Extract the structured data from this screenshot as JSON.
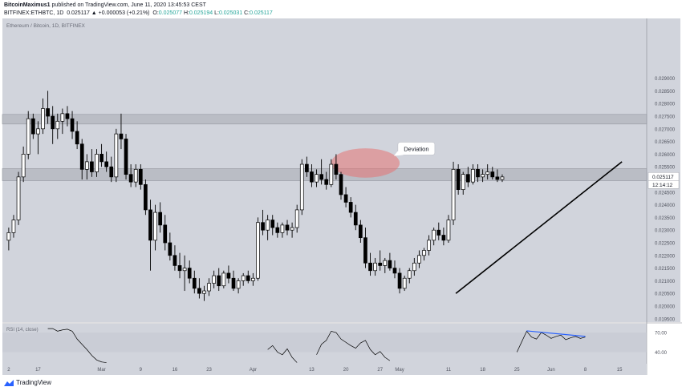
{
  "header": {
    "author": "BitcoinMaximus1",
    "published_text": "published on TradingView.com, June 11, 2020 13:45:53 CEST",
    "symbol": "BITFINEX:ETHBTC, 1D",
    "change": "0.025117 ▲ +0.000053 (+0.21%)",
    "o_label": "O:",
    "o_value": "0.025077",
    "h_label": "H:",
    "h_value": "0.025194",
    "l_label": "L:",
    "l_value": "0.025031",
    "c_label": "C:",
    "c_value": "0.025117"
  },
  "footer": {
    "brand": "TradingView",
    "icon": "tradingview-logo-icon"
  },
  "colors": {
    "background": "#d1d4dc",
    "candle_up": "#ffffff",
    "candle_down": "#000000",
    "zone": "#b2b5be",
    "deviation_ellipse": "#e57373",
    "trendline": "#000000",
    "rsi_line": "#000000",
    "divergence": "#2962ff",
    "price_tag": "#ffffff"
  },
  "chart_data": {
    "type": "candlestick",
    "title": "Ethereum / Bitcoin, 1D, BITFINEX",
    "y_ticks": [
      "0.029000",
      "0.028500",
      "0.028000",
      "0.027500",
      "0.027000",
      "0.026500",
      "0.026000",
      "0.025500",
      "0.025000",
      "0.024500",
      "0.024000",
      "0.023500",
      "0.023000",
      "0.022500",
      "0.022000",
      "0.021500",
      "0.021000",
      "0.020500",
      "0.020000",
      "0.019500"
    ],
    "ylim": [
      0.0194,
      0.0295
    ],
    "x_ticks": [
      {
        "label": "2",
        "day": 0
      },
      {
        "label": "17",
        "day": 6
      },
      {
        "label": "Mar",
        "day": 19
      },
      {
        "label": "9",
        "day": 27
      },
      {
        "label": "16",
        "day": 34
      },
      {
        "label": "23",
        "day": 41
      },
      {
        "label": "Apr",
        "day": 50
      },
      {
        "label": "13",
        "day": 62
      },
      {
        "label": "20",
        "day": 69
      },
      {
        "label": "27",
        "day": 76
      },
      {
        "label": "May",
        "day": 80
      },
      {
        "label": "11",
        "day": 90
      },
      {
        "label": "18",
        "day": 97
      },
      {
        "label": "25",
        "day": 104
      },
      {
        "label": "Jun",
        "day": 111
      },
      {
        "label": "8",
        "day": 118
      },
      {
        "label": "15",
        "day": 125
      },
      {
        "label": "22",
        "day": 132
      }
    ],
    "last_price": "0.025117",
    "countdown": "12:14:12",
    "candles": [
      [
        0.0226,
        0.0231,
        0.0222,
        0.0229
      ],
      [
        0.0229,
        0.0236,
        0.0227,
        0.0234
      ],
      [
        0.0234,
        0.0253,
        0.0232,
        0.0251
      ],
      [
        0.0251,
        0.0263,
        0.0249,
        0.026
      ],
      [
        0.026,
        0.0277,
        0.0258,
        0.0274
      ],
      [
        0.0274,
        0.0276,
        0.0266,
        0.0268
      ],
      [
        0.0268,
        0.0273,
        0.026,
        0.027
      ],
      [
        0.027,
        0.0282,
        0.0268,
        0.0278
      ],
      [
        0.0278,
        0.0285,
        0.0272,
        0.0275
      ],
      [
        0.0275,
        0.0279,
        0.0264,
        0.027
      ],
      [
        0.027,
        0.0276,
        0.0266,
        0.0273
      ],
      [
        0.0273,
        0.0278,
        0.0268,
        0.0276
      ],
      [
        0.0276,
        0.0279,
        0.0271,
        0.0274
      ],
      [
        0.0274,
        0.0277,
        0.0266,
        0.0269
      ],
      [
        0.0269,
        0.0273,
        0.0262,
        0.0264
      ],
      [
        0.0264,
        0.0266,
        0.025,
        0.0254
      ],
      [
        0.0254,
        0.026,
        0.025,
        0.0257
      ],
      [
        0.0257,
        0.0262,
        0.0251,
        0.0253
      ],
      [
        0.0253,
        0.0262,
        0.0251,
        0.026
      ],
      [
        0.026,
        0.0264,
        0.0255,
        0.0257
      ],
      [
        0.0257,
        0.0261,
        0.0253,
        0.0255
      ],
      [
        0.0255,
        0.0259,
        0.0249,
        0.0251
      ],
      [
        0.0251,
        0.027,
        0.0249,
        0.0268
      ],
      [
        0.0268,
        0.0276,
        0.0262,
        0.0266
      ],
      [
        0.0266,
        0.0268,
        0.025,
        0.0252
      ],
      [
        0.0252,
        0.0256,
        0.0247,
        0.0249
      ],
      [
        0.0249,
        0.0256,
        0.0247,
        0.0254
      ],
      [
        0.0254,
        0.0256,
        0.0246,
        0.0248
      ],
      [
        0.0248,
        0.025,
        0.0236,
        0.0238
      ],
      [
        0.0238,
        0.0242,
        0.0214,
        0.0226
      ],
      [
        0.0226,
        0.024,
        0.0222,
        0.0237
      ],
      [
        0.0237,
        0.0241,
        0.0229,
        0.0232
      ],
      [
        0.0232,
        0.0236,
        0.0222,
        0.0225
      ],
      [
        0.0225,
        0.0229,
        0.0218,
        0.022
      ],
      [
        0.022,
        0.0224,
        0.0214,
        0.0216
      ],
      [
        0.0216,
        0.0221,
        0.0211,
        0.0214
      ],
      [
        0.0214,
        0.022,
        0.0206,
        0.0215
      ],
      [
        0.0215,
        0.0218,
        0.0209,
        0.0211
      ],
      [
        0.0211,
        0.0214,
        0.0205,
        0.0207
      ],
      [
        0.0207,
        0.0211,
        0.0203,
        0.0205
      ],
      [
        0.0205,
        0.0208,
        0.0202,
        0.0206
      ],
      [
        0.0206,
        0.0211,
        0.0204,
        0.0209
      ],
      [
        0.0209,
        0.0214,
        0.0207,
        0.0212
      ],
      [
        0.0212,
        0.0215,
        0.0206,
        0.0208
      ],
      [
        0.0208,
        0.0214,
        0.0207,
        0.0213
      ],
      [
        0.0213,
        0.0216,
        0.0209,
        0.0211
      ],
      [
        0.0211,
        0.0214,
        0.0206,
        0.0207
      ],
      [
        0.0207,
        0.0211,
        0.0205,
        0.021
      ],
      [
        0.021,
        0.0213,
        0.0208,
        0.0212
      ],
      [
        0.0212,
        0.0214,
        0.0209,
        0.021
      ],
      [
        0.021,
        0.0213,
        0.0208,
        0.0211
      ],
      [
        0.0211,
        0.0235,
        0.021,
        0.0233
      ],
      [
        0.0233,
        0.0238,
        0.0228,
        0.023
      ],
      [
        0.023,
        0.0236,
        0.0226,
        0.0234
      ],
      [
        0.0234,
        0.0236,
        0.0228,
        0.0231
      ],
      [
        0.0231,
        0.0233,
        0.0227,
        0.0229
      ],
      [
        0.0229,
        0.0233,
        0.0227,
        0.0232
      ],
      [
        0.0232,
        0.0234,
        0.0228,
        0.023
      ],
      [
        0.023,
        0.0233,
        0.0227,
        0.0231
      ],
      [
        0.0231,
        0.024,
        0.0229,
        0.0238
      ],
      [
        0.0238,
        0.0258,
        0.0236,
        0.0256
      ],
      [
        0.0256,
        0.0259,
        0.0251,
        0.0253
      ],
      [
        0.0253,
        0.0256,
        0.0247,
        0.0249
      ],
      [
        0.0249,
        0.0254,
        0.0247,
        0.0252
      ],
      [
        0.0252,
        0.0258,
        0.0248,
        0.025
      ],
      [
        0.025,
        0.0253,
        0.0246,
        0.0248
      ],
      [
        0.0248,
        0.0258,
        0.0247,
        0.0256
      ],
      [
        0.0256,
        0.026,
        0.025,
        0.0252
      ],
      [
        0.0252,
        0.0253,
        0.0242,
        0.0244
      ],
      [
        0.0244,
        0.0247,
        0.0239,
        0.0241
      ],
      [
        0.0241,
        0.0243,
        0.0235,
        0.0237
      ],
      [
        0.0237,
        0.024,
        0.023,
        0.0232
      ],
      [
        0.0232,
        0.0234,
        0.0225,
        0.0227
      ],
      [
        0.0227,
        0.0231,
        0.0215,
        0.0217
      ],
      [
        0.0217,
        0.0221,
        0.0212,
        0.0214
      ],
      [
        0.0214,
        0.0219,
        0.0212,
        0.0217
      ],
      [
        0.0217,
        0.0222,
        0.0214,
        0.0216
      ],
      [
        0.0216,
        0.0219,
        0.0213,
        0.0218
      ],
      [
        0.0218,
        0.0221,
        0.0214,
        0.0215
      ],
      [
        0.0215,
        0.0218,
        0.0211,
        0.0213
      ],
      [
        0.0213,
        0.0215,
        0.0205,
        0.0207
      ],
      [
        0.0207,
        0.0212,
        0.0206,
        0.0211
      ],
      [
        0.0211,
        0.0215,
        0.0209,
        0.0214
      ],
      [
        0.0214,
        0.0219,
        0.0212,
        0.0217
      ],
      [
        0.0217,
        0.0222,
        0.0215,
        0.022
      ],
      [
        0.022,
        0.0223,
        0.0218,
        0.0222
      ],
      [
        0.0222,
        0.0228,
        0.022,
        0.0226
      ],
      [
        0.0226,
        0.0231,
        0.0224,
        0.023
      ],
      [
        0.023,
        0.0233,
        0.0226,
        0.0228
      ],
      [
        0.0228,
        0.0231,
        0.0224,
        0.0226
      ],
      [
        0.0226,
        0.0236,
        0.0225,
        0.0234
      ],
      [
        0.0234,
        0.0257,
        0.0232,
        0.0254
      ],
      [
        0.0254,
        0.0256,
        0.0244,
        0.0246
      ],
      [
        0.0246,
        0.0253,
        0.0244,
        0.0252
      ],
      [
        0.0252,
        0.0255,
        0.0247,
        0.0249
      ],
      [
        0.0249,
        0.0256,
        0.0248,
        0.0254
      ],
      [
        0.0254,
        0.0256,
        0.0249,
        0.0251
      ],
      [
        0.0251,
        0.0254,
        0.0249,
        0.0252
      ],
      [
        0.0252,
        0.0256,
        0.025,
        0.0253
      ],
      [
        0.0253,
        0.0255,
        0.025,
        0.0251
      ],
      [
        0.0251,
        0.0254,
        0.0249,
        0.025
      ],
      [
        0.025,
        0.0252,
        0.0249,
        0.0251
      ]
    ],
    "x_offset": 0.8,
    "zones": [
      {
        "low": 0.02719,
        "high": 0.02757
      },
      {
        "low": 0.02495,
        "high": 0.02543
      }
    ],
    "trendline": [
      [
        91.5,
        0.0205
      ],
      [
        125.5,
        0.0257
      ]
    ],
    "annotation": {
      "label": "Deviation",
      "day": 80.3,
      "price": 0.02622
    },
    "deviation_ellipse": {
      "cx_day": 73.0,
      "cy_price": 0.02565,
      "rx_days": 7.0,
      "ry_price": 0.00058
    },
    "rsi": {
      "label": "RSI (14, close)",
      "ticks": [
        "70.00",
        "40.00"
      ],
      "ylim": [
        20,
        80
      ],
      "values": [
        [
          8,
          76
        ],
        [
          9,
          76
        ],
        [
          10,
          72
        ],
        [
          11,
          74
        ],
        [
          12,
          75
        ],
        [
          13,
          72
        ],
        [
          14,
          60
        ],
        [
          15,
          52
        ],
        [
          16,
          44
        ],
        [
          17,
          35
        ],
        [
          18,
          28
        ],
        [
          19,
          25
        ],
        [
          20,
          24
        ],
        [
          53,
          44
        ],
        [
          54,
          50
        ],
        [
          55,
          40
        ],
        [
          56,
          36
        ],
        [
          57,
          45
        ],
        [
          58,
          32
        ],
        [
          59,
          24
        ],
        [
          63,
          36
        ],
        [
          64,
          52
        ],
        [
          65,
          58
        ],
        [
          66,
          72
        ],
        [
          67,
          70
        ],
        [
          68,
          60
        ],
        [
          69,
          55
        ],
        [
          70,
          50
        ],
        [
          71,
          46
        ],
        [
          72,
          54
        ],
        [
          73,
          58
        ],
        [
          74,
          44
        ],
        [
          75,
          36
        ],
        [
          76,
          41
        ],
        [
          77,
          32
        ],
        [
          78,
          27
        ],
        [
          104,
          40
        ],
        [
          105,
          56
        ],
        [
          106,
          72
        ],
        [
          107,
          63
        ],
        [
          108,
          60
        ],
        [
          109,
          70
        ],
        [
          110,
          66
        ],
        [
          111,
          61
        ],
        [
          112,
          64
        ],
        [
          113,
          66
        ],
        [
          114,
          59
        ],
        [
          115,
          62
        ],
        [
          116,
          64
        ],
        [
          117,
          61
        ],
        [
          118,
          63
        ]
      ],
      "divergence": [
        [
          106,
          72.5
        ],
        [
          118,
          64.0
        ]
      ]
    }
  }
}
